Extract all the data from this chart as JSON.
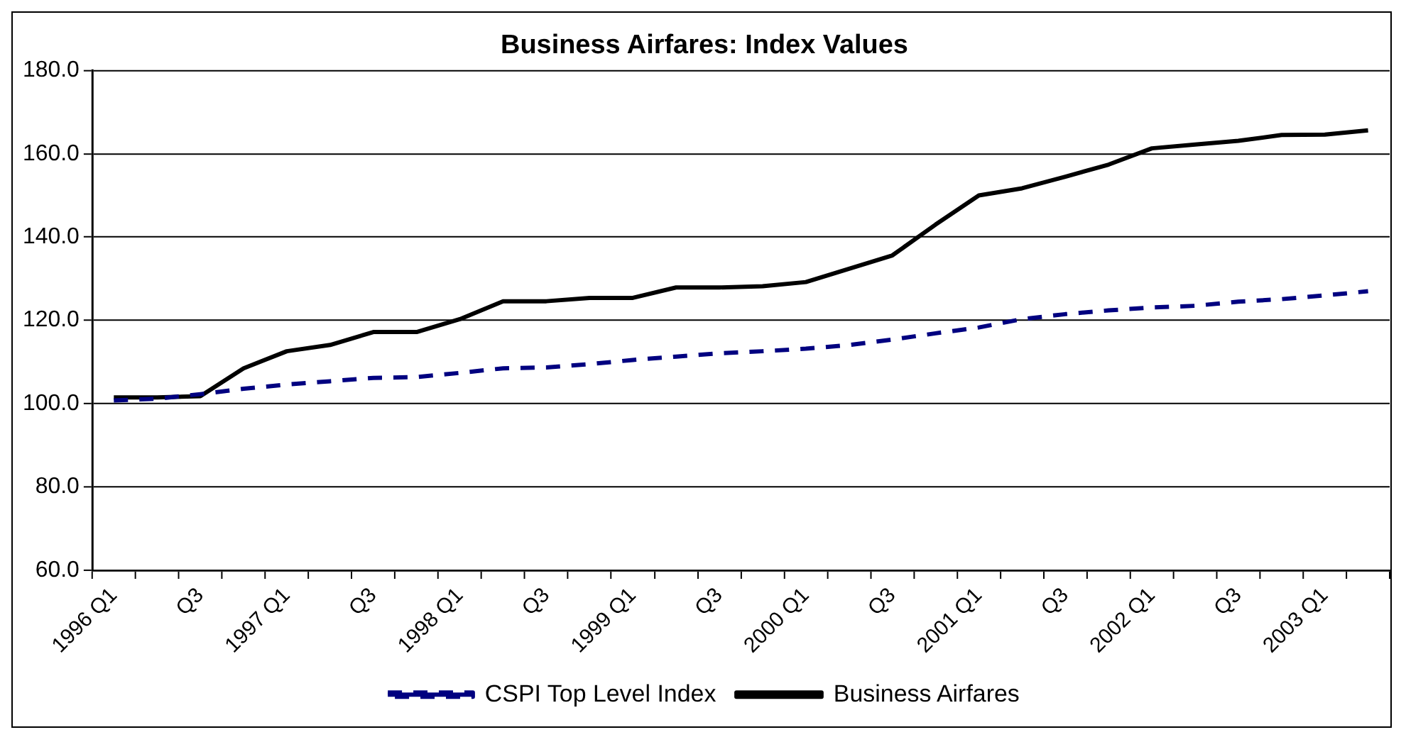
{
  "chart_data": {
    "type": "line",
    "title": "Business Airfares: Index Values",
    "categories": [
      "1996 Q1",
      null,
      "Q3",
      null,
      "1997 Q1",
      null,
      "Q3",
      null,
      "1998 Q1",
      null,
      "Q3",
      null,
      "1999 Q1",
      null,
      "Q3",
      null,
      "2000 Q1",
      null,
      "Q3",
      null,
      "2001 Q1",
      null,
      "Q3",
      null,
      "2002 Q1",
      null,
      "Q3",
      null,
      "2003 Q1",
      null
    ],
    "series": [
      {
        "name": "CSPI Top Level Index",
        "color": "#000080",
        "line_style": "dashed",
        "values": [
          100.8,
          101.2,
          102.3,
          103.6,
          104.6,
          105.4,
          106.2,
          106.4,
          107.4,
          108.5,
          108.7,
          109.5,
          110.5,
          111.3,
          112.1,
          112.6,
          113.2,
          114.1,
          115.4,
          116.9,
          118.3,
          120.3,
          121.5,
          122.4,
          123.1,
          123.5,
          124.5,
          125.1,
          126.0,
          127.0
        ]
      },
      {
        "name": "Business Airfares",
        "color": "#000000",
        "line_style": "solid",
        "values": [
          101.5,
          101.5,
          101.8,
          108.5,
          112.6,
          114.1,
          117.2,
          117.2,
          120.3,
          124.6,
          124.6,
          125.4,
          125.4,
          127.9,
          127.9,
          128.2,
          129.2,
          132.4,
          135.6,
          143.0,
          150.0,
          151.7,
          154.5,
          157.4,
          161.3,
          162.2,
          163.1,
          164.5,
          164.6,
          165.6
        ]
      }
    ],
    "ylim": [
      60,
      180
    ],
    "yticks": [
      {
        "value": 60,
        "label": "60.0"
      },
      {
        "value": 80,
        "label": "80.0"
      },
      {
        "value": 100,
        "label": "100.0"
      },
      {
        "value": 120,
        "label": "120.0"
      },
      {
        "value": 140,
        "label": "140.0"
      },
      {
        "value": 160,
        "label": "160.0"
      },
      {
        "value": 180,
        "label": "180.0"
      }
    ],
    "grid": "y",
    "legend": "bottom",
    "marker": "none"
  }
}
